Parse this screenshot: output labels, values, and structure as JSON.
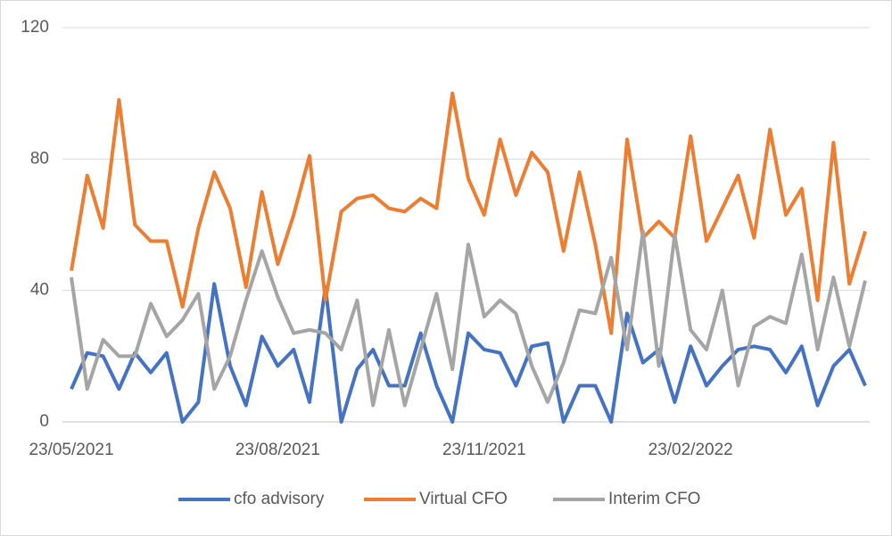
{
  "chart_data": {
    "type": "line",
    "categories": [
      "23/05/2021",
      null,
      null,
      null,
      null,
      null,
      null,
      null,
      null,
      null,
      null,
      null,
      null,
      "23/08/2021",
      null,
      null,
      null,
      null,
      null,
      null,
      null,
      null,
      null,
      null,
      null,
      null,
      "23/11/2021",
      null,
      null,
      null,
      null,
      null,
      null,
      null,
      null,
      null,
      null,
      null,
      null,
      "23/02/2022",
      null,
      null,
      null,
      null,
      null,
      null,
      null,
      null,
      null,
      null,
      null
    ],
    "series": [
      {
        "name": "cfo advisory",
        "color": "#4472c4",
        "values": [
          10,
          21,
          20,
          10,
          21,
          15,
          21,
          0,
          6,
          42,
          17,
          5,
          26,
          17,
          22,
          6,
          41,
          0,
          16,
          22,
          11,
          11,
          27,
          11,
          0,
          27,
          22,
          21,
          11,
          23,
          24,
          0,
          11,
          11,
          0,
          33,
          18,
          22,
          6,
          23,
          11,
          17,
          22,
          23,
          22,
          15,
          23,
          5,
          17,
          22,
          11
        ]
      },
      {
        "name": "Virtual CFO",
        "color": "#ed7d31",
        "values": [
          46,
          75,
          59,
          98,
          60,
          55,
          55,
          35,
          59,
          76,
          65,
          41,
          70,
          48,
          63,
          81,
          37,
          64,
          68,
          69,
          65,
          64,
          68,
          65,
          100,
          74,
          63,
          86,
          69,
          82,
          76,
          52,
          76,
          54,
          27,
          86,
          56,
          61,
          56,
          87,
          55,
          65,
          75,
          56,
          89,
          63,
          71,
          37,
          85,
          42,
          58
        ]
      },
      {
        "name": "Interim CFO",
        "color": "#a5a5a5",
        "values": [
          44,
          10,
          25,
          20,
          20,
          36,
          26,
          31,
          39,
          10,
          20,
          37,
          52,
          38,
          27,
          28,
          27,
          22,
          37,
          5,
          28,
          5,
          22,
          39,
          16,
          54,
          32,
          37,
          33,
          17,
          6,
          18,
          34,
          33,
          50,
          22,
          58,
          17,
          57,
          28,
          22,
          40,
          11,
          29,
          32,
          30,
          51,
          22,
          44,
          23,
          43
        ]
      }
    ],
    "ylim": [
      0,
      120
    ],
    "yticks": [
      0,
      40,
      80,
      120
    ],
    "grid": true
  }
}
